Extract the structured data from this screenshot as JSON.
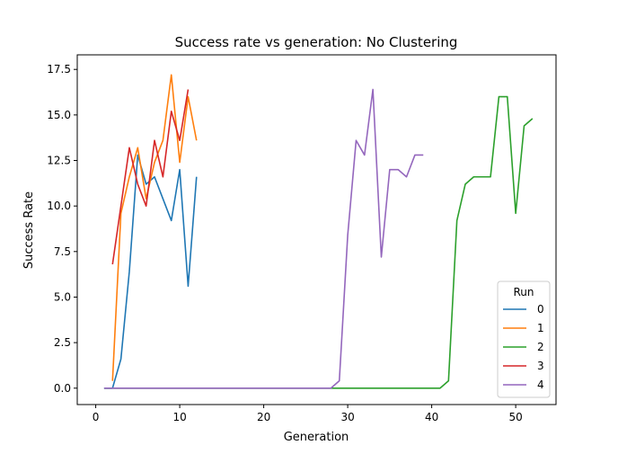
{
  "chart_data": {
    "type": "line",
    "title": "Success rate vs generation: No Clustering",
    "xlabel": "Generation",
    "ylabel": "Success Rate",
    "xlim": [
      -2.2,
      54.8
    ],
    "ylim": [
      -0.9,
      18.3
    ],
    "xticks": [
      0,
      10,
      20,
      30,
      40,
      50
    ],
    "xtick_labels": [
      "0",
      "10",
      "20",
      "30",
      "40",
      "50"
    ],
    "yticks": [
      0,
      2.5,
      5,
      7.5,
      10,
      12.5,
      15,
      17.5
    ],
    "ytick_labels": [
      "0.0",
      "2.5",
      "5.0",
      "7.5",
      "10.0",
      "12.5",
      "15.0",
      "17.5"
    ],
    "grid": false,
    "legend": {
      "title": "Run",
      "placement": "lower-right"
    },
    "series": [
      {
        "name": "0",
        "color": "#1f77b4",
        "x": [
          1,
          2,
          3,
          4,
          5,
          6,
          7,
          8,
          9,
          10,
          11,
          12
        ],
        "y": [
          0,
          0,
          1.6,
          6.4,
          12.8,
          11.2,
          11.6,
          10.4,
          9.2,
          12.0,
          5.6,
          11.6
        ]
      },
      {
        "name": "1",
        "color": "#ff7f0e",
        "x": [
          2,
          3,
          4,
          5,
          6,
          7,
          8,
          9,
          10,
          11,
          12
        ],
        "y": [
          0.4,
          9.6,
          11.6,
          13.2,
          10.4,
          12.4,
          13.6,
          17.2,
          12.4,
          16.0,
          13.6
        ]
      },
      {
        "name": "2",
        "color": "#2ca02c",
        "x": [
          1,
          41,
          42,
          43,
          44,
          45,
          46,
          47,
          48,
          49,
          50,
          51,
          52
        ],
        "y": [
          0,
          0,
          0.4,
          9.2,
          11.2,
          11.6,
          11.6,
          11.6,
          16.0,
          16.0,
          9.6,
          14.4,
          14.8
        ]
      },
      {
        "name": "3",
        "color": "#d62728",
        "x": [
          2,
          3,
          4,
          5,
          6,
          7,
          8,
          9,
          10,
          11
        ],
        "y": [
          6.8,
          10.0,
          13.2,
          11.2,
          10.0,
          13.6,
          11.6,
          15.2,
          13.6,
          16.4
        ]
      },
      {
        "name": "4",
        "color": "#9467bd",
        "x": [
          1,
          28,
          29,
          30,
          31,
          32,
          33,
          34,
          35,
          36,
          37,
          38,
          39
        ],
        "y": [
          0,
          0,
          0.4,
          8.4,
          13.6,
          12.8,
          16.4,
          7.2,
          12.0,
          12.0,
          11.6,
          12.8,
          12.8
        ]
      }
    ]
  }
}
